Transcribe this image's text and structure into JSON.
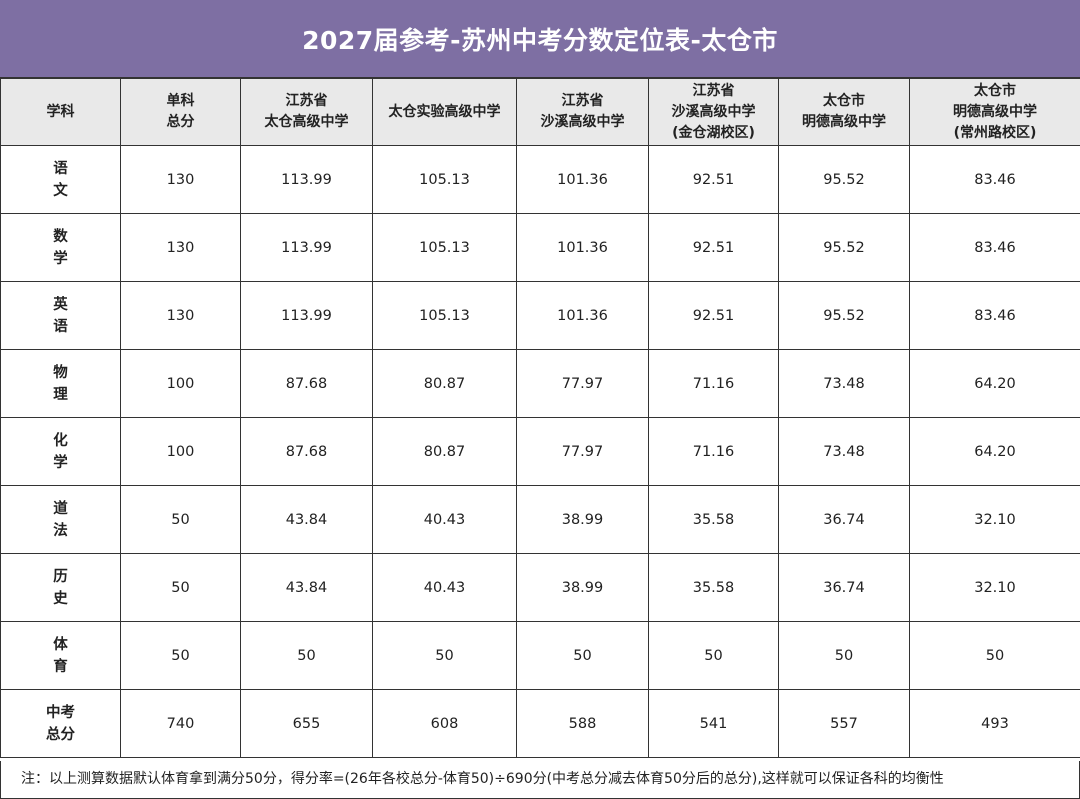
{
  "title": "2027届参考-苏州中考分数定位表-太仓市",
  "headers": [
    [
      "学科"
    ],
    [
      "单科",
      "总分"
    ],
    [
      "江苏省",
      "太仓高级中学"
    ],
    [
      "太仓实验高级中学"
    ],
    [
      "江苏省",
      "沙溪高级中学"
    ],
    [
      "江苏省",
      "沙溪高级中学",
      "(金仓湖校区)"
    ],
    [
      "太仓市",
      "明德高级中学"
    ],
    [
      "太仓市",
      "明德高级中学",
      "(常州路校区)"
    ]
  ],
  "rows": [
    {
      "subject": [
        "语",
        "文"
      ],
      "values": [
        "130",
        "113.99",
        "105.13",
        "101.36",
        "92.51",
        "95.52",
        "83.46"
      ]
    },
    {
      "subject": [
        "数",
        "学"
      ],
      "values": [
        "130",
        "113.99",
        "105.13",
        "101.36",
        "92.51",
        "95.52",
        "83.46"
      ]
    },
    {
      "subject": [
        "英",
        "语"
      ],
      "values": [
        "130",
        "113.99",
        "105.13",
        "101.36",
        "92.51",
        "95.52",
        "83.46"
      ]
    },
    {
      "subject": [
        "物",
        "理"
      ],
      "values": [
        "100",
        "87.68",
        "80.87",
        "77.97",
        "71.16",
        "73.48",
        "64.20"
      ]
    },
    {
      "subject": [
        "化",
        "学"
      ],
      "values": [
        "100",
        "87.68",
        "80.87",
        "77.97",
        "71.16",
        "73.48",
        "64.20"
      ]
    },
    {
      "subject": [
        "道",
        "法"
      ],
      "values": [
        "50",
        "43.84",
        "40.43",
        "38.99",
        "35.58",
        "36.74",
        "32.10"
      ]
    },
    {
      "subject": [
        "历",
        "史"
      ],
      "values": [
        "50",
        "43.84",
        "40.43",
        "38.99",
        "35.58",
        "36.74",
        "32.10"
      ]
    },
    {
      "subject": [
        "体",
        "育"
      ],
      "values": [
        "50",
        "50",
        "50",
        "50",
        "50",
        "50",
        "50"
      ]
    },
    {
      "subject": [
        "中考",
        "总分"
      ],
      "values": [
        "740",
        "655",
        "608",
        "588",
        "541",
        "557",
        "493"
      ]
    }
  ],
  "note": "注：以上测算数据默认体育拿到满分50分，得分率=(26年各校总分-体育50)÷690分(中考总分减去体育50分后的总分),这样就可以保证各科的均衡性",
  "colors": {
    "title_bg": "#7e6fa3",
    "header_bg": "#e9e9e9",
    "border": "#333333"
  }
}
